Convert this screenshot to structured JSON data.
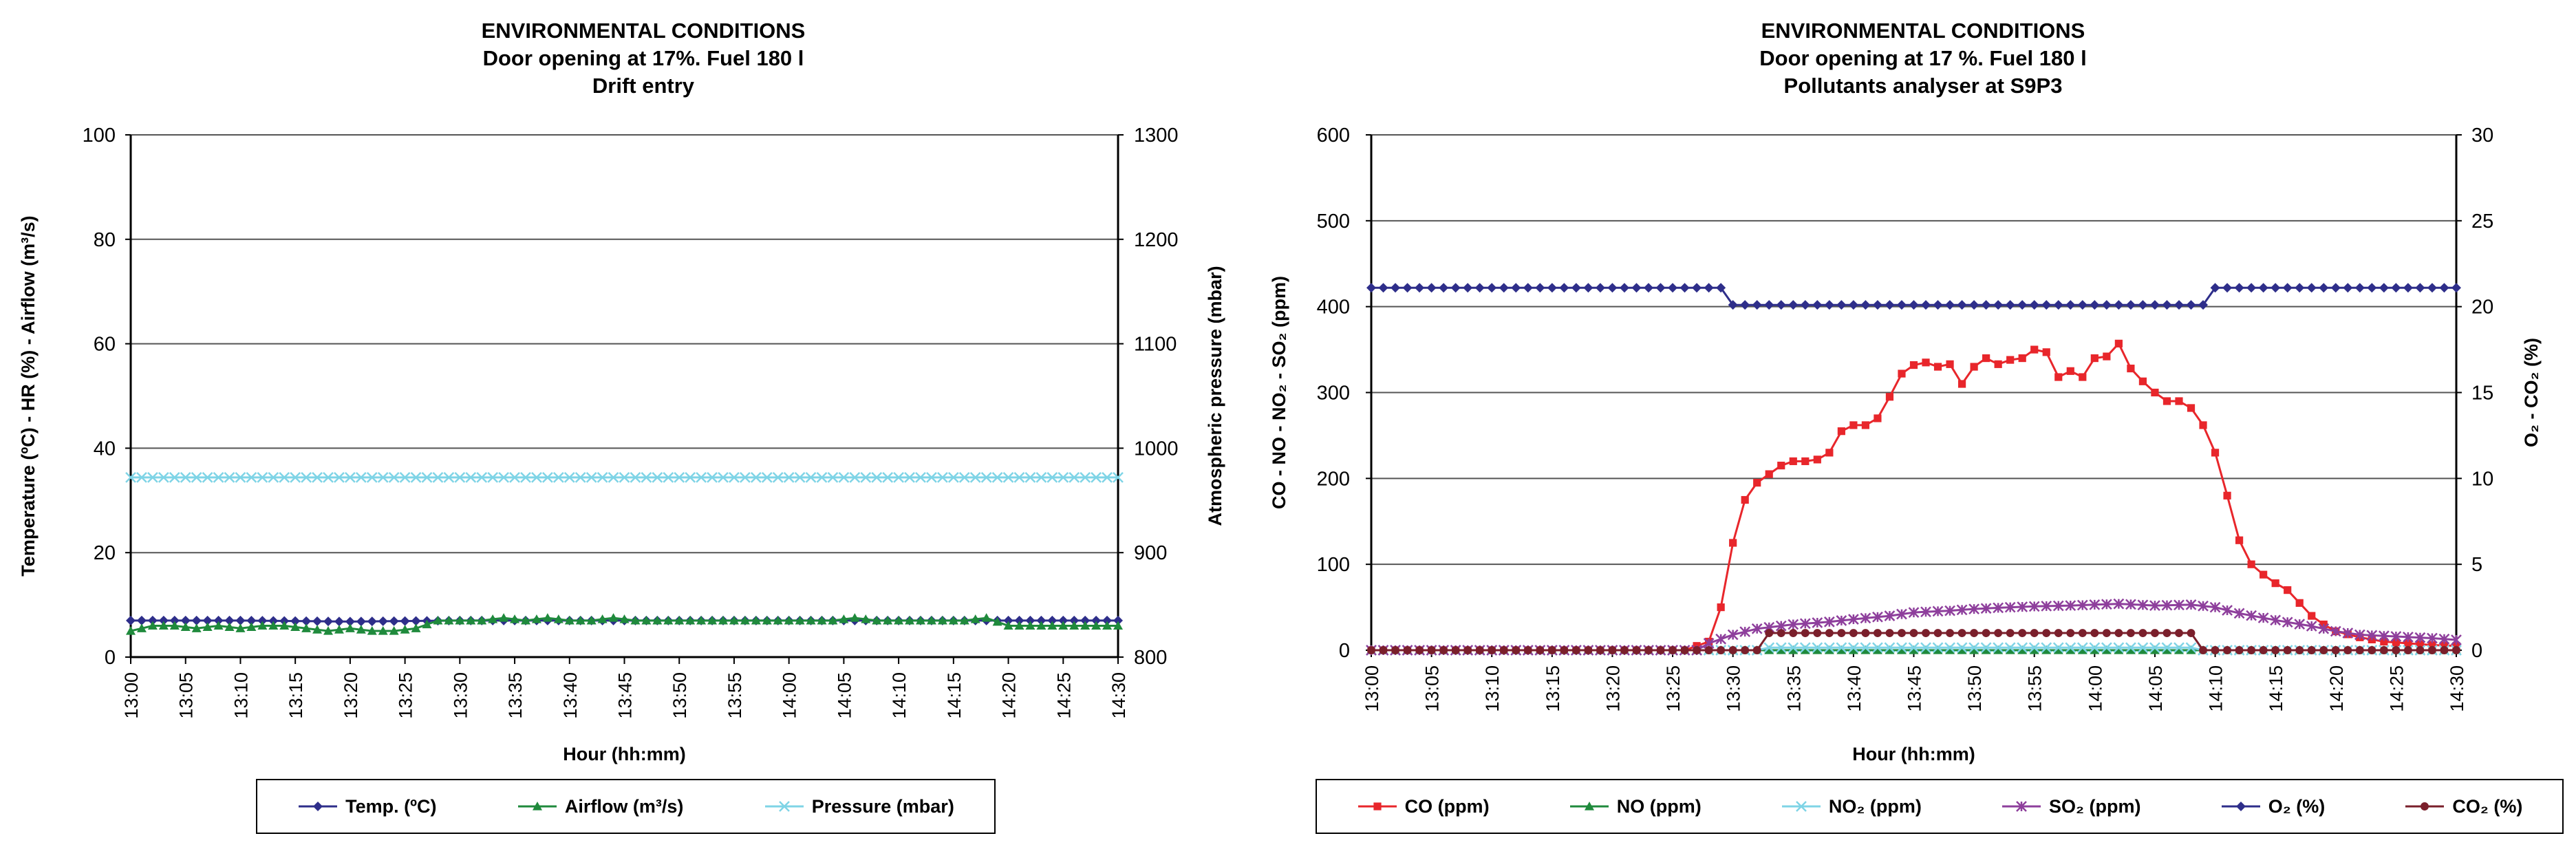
{
  "chart_data": [
    {
      "type": "line",
      "title": [
        "ENVIRONMENTAL CONDITIONS",
        "Door opening at 17%. Fuel 180 l",
        "Drift entry"
      ],
      "xlabel": "Hour (hh:mm)",
      "ylabel": "Temperature (ºC) - HR (%) - Airflow (m³/s)",
      "y2label": "Atmospheric pressure (mbar)",
      "ylim": [
        0,
        100
      ],
      "y2lim": [
        800,
        1300
      ],
      "yticks": [
        0,
        20,
        40,
        60,
        80,
        100
      ],
      "y2ticks": [
        800,
        900,
        1000,
        1100,
        1200,
        1300
      ],
      "xlim": [
        "13:00",
        "14:30"
      ],
      "xticks": [
        "13:00",
        "13:05",
        "13:10",
        "13:15",
        "13:20",
        "13:25",
        "13:30",
        "13:35",
        "13:40",
        "13:45",
        "13:50",
        "13:55",
        "14:00",
        "14:05",
        "14:10",
        "14:15",
        "14:20",
        "14:25",
        "14:30"
      ],
      "grid": true,
      "legend": "bottom",
      "series": [
        {
          "name": "Temp. (ºC)",
          "axis": "left",
          "color": "#2e2e8a",
          "marker": "diamond",
          "x": [
            "13:00",
            "13:10",
            "13:20",
            "13:30",
            "13:40",
            "13:50",
            "14:00",
            "14:10",
            "14:20",
            "14:30"
          ],
          "values": [
            7,
            7,
            6.8,
            7,
            7,
            7,
            7,
            7,
            7,
            7
          ]
        },
        {
          "name": "Airflow (m³/s)",
          "axis": "left",
          "color": "#1f8a3c",
          "marker": "triangle",
          "x": [
            "13:00",
            "13:02",
            "13:04",
            "13:06",
            "13:08",
            "13:10",
            "13:12",
            "13:14",
            "13:16",
            "13:18",
            "13:20",
            "13:22",
            "13:24",
            "13:26",
            "13:28",
            "13:30",
            "13:32",
            "13:34",
            "13:36",
            "13:38",
            "13:40",
            "13:42",
            "13:44",
            "13:46",
            "13:48",
            "13:50",
            "13:52",
            "13:54",
            "13:56",
            "13:58",
            "14:00",
            "14:02",
            "14:04",
            "14:06",
            "14:08",
            "14:10",
            "14:12",
            "14:14",
            "14:16",
            "14:18",
            "14:20",
            "14:22",
            "14:24",
            "14:26",
            "14:28",
            "14:30"
          ],
          "values": [
            5,
            6,
            6,
            5.5,
            6,
            5.5,
            6,
            6,
            5.5,
            5,
            5.5,
            5,
            5,
            5.5,
            7,
            7,
            7,
            7.5,
            7,
            7.5,
            7,
            7,
            7.5,
            7,
            7,
            7,
            7,
            7,
            7,
            7,
            7,
            7,
            7,
            7.5,
            7,
            7,
            7,
            7,
            7,
            7.5,
            6,
            6,
            6,
            6,
            6,
            6
          ]
        },
        {
          "name": "Pressure (mbar)",
          "axis": "right",
          "color": "#7fd4e6",
          "marker": "x",
          "x": [
            "13:00",
            "14:30"
          ],
          "values": [
            972,
            972
          ]
        }
      ]
    },
    {
      "type": "line",
      "title": [
        "ENVIRONMENTAL CONDITIONS",
        "Door opening at 17 %. Fuel 180 l",
        "Pollutants analyser at S9P3"
      ],
      "xlabel": "Hour (hh:mm)",
      "ylabel": "CO - NO - NO₂ - SO₂ (ppm)",
      "y2label": "O₂ - CO₂ (%)",
      "ylim": [
        0,
        600
      ],
      "y2lim": [
        0,
        30
      ],
      "yticks": [
        0,
        100,
        200,
        300,
        400,
        500,
        600
      ],
      "y2ticks": [
        0,
        5,
        10,
        15,
        20,
        25,
        30
      ],
      "xlim": [
        "13:00",
        "14:30"
      ],
      "xticks": [
        "13:00",
        "13:05",
        "13:10",
        "13:15",
        "13:20",
        "13:25",
        "13:30",
        "13:35",
        "13:40",
        "13:45",
        "13:50",
        "13:55",
        "14:00",
        "14:05",
        "14:10",
        "14:15",
        "14:20",
        "14:25",
        "14:30"
      ],
      "grid": true,
      "legend": "bottom",
      "series": [
        {
          "name": "CO (ppm)",
          "axis": "left",
          "color": "#e8262b",
          "marker": "square",
          "x": [
            "13:00",
            "13:26",
            "13:28",
            "13:29",
            "13:30",
            "13:31",
            "13:32",
            "13:33",
            "13:34",
            "13:35",
            "13:36",
            "13:37",
            "13:38",
            "13:39",
            "13:40",
            "13:41",
            "13:42",
            "13:43",
            "13:44",
            "13:45",
            "13:46",
            "13:47",
            "13:48",
            "13:49",
            "13:50",
            "13:51",
            "13:52",
            "13:53",
            "13:54",
            "13:55",
            "13:56",
            "13:57",
            "13:58",
            "13:59",
            "14:00",
            "14:01",
            "14:02",
            "14:03",
            "14:04",
            "14:05",
            "14:06",
            "14:07",
            "14:08",
            "14:09",
            "14:10",
            "14:11",
            "14:12",
            "14:13",
            "14:14",
            "14:15",
            "14:16",
            "14:17",
            "14:18",
            "14:19",
            "14:20",
            "14:22",
            "14:24",
            "14:26",
            "14:28",
            "14:30"
          ],
          "values": [
            0,
            0,
            10,
            50,
            125,
            175,
            195,
            205,
            215,
            220,
            220,
            222,
            230,
            255,
            262,
            262,
            270,
            295,
            322,
            332,
            335,
            330,
            333,
            310,
            330,
            340,
            333,
            338,
            340,
            350,
            347,
            318,
            325,
            318,
            340,
            342,
            357,
            328,
            313,
            300,
            290,
            290,
            282,
            262,
            230,
            180,
            128,
            100,
            88,
            78,
            70,
            55,
            40,
            30,
            22,
            15,
            10,
            8,
            6,
            5
          ]
        },
        {
          "name": "NO (ppm)",
          "axis": "left",
          "color": "#1f8a3c",
          "marker": "triangle",
          "x": [
            "13:00",
            "14:30"
          ],
          "values": [
            0,
            0
          ]
        },
        {
          "name": "NO₂ (ppm)",
          "axis": "left",
          "color": "#7fd4e6",
          "marker": "x",
          "x": [
            "13:00",
            "13:32",
            "13:33",
            "14:08",
            "14:09",
            "14:30"
          ],
          "values": [
            0,
            0,
            3,
            3,
            0,
            0
          ]
        },
        {
          "name": "SO₂ (ppm)",
          "axis": "left",
          "color": "#8e3f9c",
          "marker": "star",
          "x": [
            "13:00",
            "13:27",
            "13:28",
            "13:30",
            "13:32",
            "13:35",
            "13:38",
            "13:40",
            "13:43",
            "13:45",
            "13:48",
            "13:50",
            "13:53",
            "13:55",
            "13:58",
            "14:00",
            "14:02",
            "14:05",
            "14:08",
            "14:10",
            "14:12",
            "14:15",
            "14:18",
            "14:20",
            "14:22",
            "14:25",
            "14:28",
            "14:30"
          ],
          "values": [
            0,
            0,
            8,
            18,
            25,
            30,
            33,
            36,
            40,
            44,
            46,
            48,
            50,
            51,
            52,
            53,
            54,
            52,
            53,
            50,
            43,
            35,
            28,
            22,
            18,
            16,
            14,
            12
          ]
        },
        {
          "name": "O₂ (%)",
          "axis": "right",
          "color": "#2e2e8a",
          "marker": "diamond",
          "x": [
            "13:00",
            "13:29",
            "13:30",
            "14:09",
            "14:10",
            "14:30"
          ],
          "values": [
            21.1,
            21.1,
            20.1,
            20.1,
            21.1,
            21.1
          ]
        },
        {
          "name": "CO₂ (%)",
          "axis": "right",
          "color": "#7a1f2b",
          "marker": "circle",
          "x": [
            "13:00",
            "13:32",
            "13:33",
            "14:08",
            "14:09",
            "14:30"
          ],
          "values": [
            0,
            0,
            1.0,
            1.0,
            0,
            0
          ]
        }
      ]
    }
  ]
}
